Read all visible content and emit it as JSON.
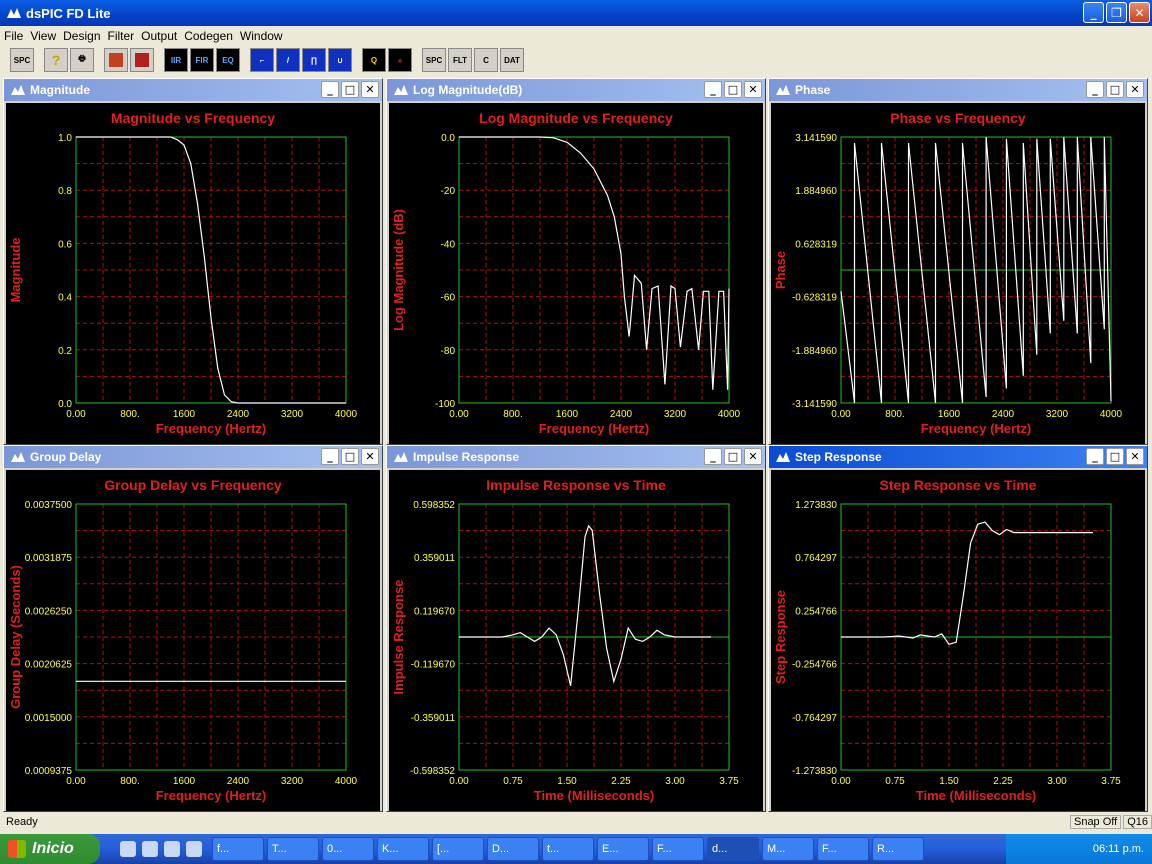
{
  "window": {
    "title": "dsPIC FD Lite"
  },
  "menu": [
    "File",
    "View",
    "Design",
    "Filter",
    "Output",
    "Codegen",
    "Window"
  ],
  "toolbar": [
    "SPC",
    "?",
    "print",
    "",
    "",
    "",
    "IIR",
    "FIR",
    "EQ",
    "",
    "",
    "",
    "",
    "Q",
    "",
    "SPC",
    "FLT",
    "C",
    "DAT"
  ],
  "panels": [
    {
      "id": "magnitude",
      "window_title": "Magnitude",
      "active": false
    },
    {
      "id": "logmag",
      "window_title": "Log Magnitude(dB)",
      "active": false
    },
    {
      "id": "phase",
      "window_title": "Phase",
      "active": false
    },
    {
      "id": "groupdelay",
      "window_title": "Group Delay",
      "active": false
    },
    {
      "id": "impulse",
      "window_title": "Impulse Response",
      "active": false
    },
    {
      "id": "step",
      "window_title": "Step Response",
      "active": true
    }
  ],
  "chart_data": [
    {
      "type": "line",
      "title": "Magnitude vs Frequency",
      "xlabel": "Frequency (Hertz)",
      "ylabel": "Magnitude",
      "xlim": [
        0,
        4000
      ],
      "ylim": [
        0,
        1
      ],
      "xticks": [
        "0.00",
        "800.",
        "1600",
        "2400",
        "3200",
        "4000"
      ],
      "yticks": [
        "0.0",
        "0.2",
        "0.4",
        "0.6",
        "0.8",
        "1.0"
      ],
      "grid": true,
      "x": [
        0,
        400,
        800,
        1200,
        1400,
        1500,
        1600,
        1700,
        1800,
        1900,
        2000,
        2100,
        2200,
        2300,
        2400,
        2800,
        3200,
        3600,
        4000
      ],
      "y": [
        1,
        1,
        1,
        1,
        1,
        0.99,
        0.97,
        0.9,
        0.75,
        0.55,
        0.32,
        0.13,
        0.03,
        0.005,
        0,
        0,
        0,
        0,
        0
      ]
    },
    {
      "type": "line",
      "title": "Log Magnitude vs Frequency",
      "xlabel": "Frequency (Hertz)",
      "ylabel": "Log Magnitude (dB)",
      "xlim": [
        0,
        4000
      ],
      "ylim": [
        -100,
        0
      ],
      "xticks": [
        "0.00",
        "800.",
        "1600",
        "2400",
        "3200",
        "4000"
      ],
      "yticks": [
        "-100",
        "-80",
        "-60",
        "-40",
        "-20",
        "0.0"
      ],
      "grid": true,
      "x": [
        0,
        800,
        1200,
        1400,
        1600,
        1800,
        2000,
        2200,
        2300,
        2400,
        2450,
        2520,
        2540,
        2600,
        2700,
        2780,
        2860,
        2950,
        3050,
        3140,
        3200,
        3280,
        3380,
        3450,
        3550,
        3620,
        3700,
        3760,
        3850,
        3920,
        3980,
        4000
      ],
      "y": [
        0,
        0,
        0,
        -0.3,
        -2,
        -6,
        -12,
        -22,
        -30,
        -44,
        -60,
        -75,
        -70,
        -52,
        -55,
        -80,
        -57,
        -56,
        -93,
        -56,
        -57,
        -79,
        -58,
        -57,
        -80,
        -58,
        -58,
        -95,
        -58,
        -58,
        -95,
        -57
      ]
    },
    {
      "type": "line",
      "title": "Phase vs Frequency",
      "xlabel": "Frequency (Hertz)",
      "ylabel": "Phase",
      "xlim": [
        0,
        4000
      ],
      "ylim": [
        -3.14159,
        3.14159
      ],
      "xticks": [
        "0.00",
        "800.",
        "1600",
        "2400",
        "3200",
        "4000"
      ],
      "yticks": [
        "-3.141590",
        "-1.884960",
        "-0.628319",
        "0.628319",
        "1.884960",
        "3.141590"
      ],
      "grid": true,
      "x": [
        0,
        200,
        200,
        600,
        600,
        1000,
        1000,
        1400,
        1400,
        1800,
        1800,
        2150,
        2150,
        2450,
        2450,
        2700,
        2700,
        2900,
        2900,
        3100,
        3100,
        3300,
        3300,
        3500,
        3500,
        3700,
        3700,
        3900,
        3900,
        4000
      ],
      "y": [
        -0.5,
        -3.14,
        3.0,
        -3.14,
        3.0,
        -3.14,
        3.0,
        -3.14,
        3.0,
        -3.14,
        3.0,
        -3.0,
        3.14,
        -2.8,
        3.1,
        -2.5,
        3.0,
        -2.0,
        3.1,
        -1.5,
        3.1,
        -1.2,
        3.14,
        -1.5,
        3.14,
        -2.2,
        3.14,
        -1.4,
        3.14,
        -3.1
      ]
    },
    {
      "type": "line",
      "title": "Group Delay vs Frequency",
      "xlabel": "Frequency (Hertz)",
      "ylabel": "Group Delay (Seconds)",
      "xlim": [
        0,
        4000
      ],
      "ylim": [
        0.0009375,
        0.00375
      ],
      "xticks": [
        "0.00",
        "800.",
        "1600",
        "2400",
        "3200",
        "4000"
      ],
      "yticks": [
        "0.0009375",
        "0.0015000",
        "0.0020625",
        "0.0026250",
        "0.0031875",
        "0.0037500"
      ],
      "grid": true,
      "x": [
        0,
        4000
      ],
      "y": [
        0.001875,
        0.001875
      ]
    },
    {
      "type": "line",
      "title": "Impulse Response vs Time",
      "xlabel": "Time (Milliseconds)",
      "ylabel": "Impulse Response",
      "xlim": [
        0,
        3.75
      ],
      "ylim": [
        -0.598352,
        0.598352
      ],
      "xticks": [
        "0.00",
        "0.75",
        "1.50",
        "2.25",
        "3.00",
        "3.75"
      ],
      "yticks": [
        "-0.598352",
        "-0.359011",
        "-0.119670",
        "0.119670",
        "0.359011",
        "0.598352"
      ],
      "grid": true,
      "x": [
        0,
        0.6,
        0.75,
        0.85,
        0.95,
        1.05,
        1.15,
        1.25,
        1.35,
        1.45,
        1.55,
        1.65,
        1.75,
        1.8,
        1.85,
        1.95,
        2.05,
        2.15,
        2.25,
        2.35,
        2.45,
        2.55,
        2.65,
        2.75,
        2.85,
        3.0,
        3.2,
        3.5
      ],
      "y": [
        0,
        0,
        0.01,
        0.02,
        0,
        -0.02,
        0,
        0.04,
        0.01,
        -0.08,
        -0.22,
        0.1,
        0.45,
        0.5,
        0.48,
        0.2,
        -0.05,
        -0.2,
        -0.1,
        0.04,
        -0.01,
        -0.02,
        0.0,
        0.03,
        0.01,
        0.0,
        0.0,
        0.0
      ]
    },
    {
      "type": "line",
      "title": "Step Response vs Time",
      "xlabel": "Time (Milliseconds)",
      "ylabel": "Step Response",
      "xlim": [
        0,
        3.75
      ],
      "ylim": [
        -1.27383,
        1.27383
      ],
      "xticks": [
        "0.00",
        "0.75",
        "1.50",
        "2.25",
        "3.00",
        "3.75"
      ],
      "yticks": [
        "-1.273830",
        "-0.764297",
        "-0.254766",
        "0.254766",
        "0.764297",
        "1.273830"
      ],
      "grid": true,
      "x": [
        0,
        0.6,
        0.8,
        1.0,
        1.1,
        1.3,
        1.4,
        1.5,
        1.6,
        1.7,
        1.8,
        1.9,
        2.0,
        2.1,
        2.2,
        2.3,
        2.4,
        2.6,
        2.8,
        3.0,
        3.5
      ],
      "y": [
        0,
        0,
        0.01,
        -0.01,
        0.02,
        0.0,
        0.03,
        -0.07,
        -0.05,
        0.4,
        0.9,
        1.08,
        1.1,
        1.02,
        0.98,
        1.03,
        1.0,
        1.0,
        1.0,
        1.0,
        1.0
      ]
    }
  ],
  "status": {
    "text": "Ready",
    "snap": "Snap Off",
    "code": "Q16"
  },
  "taskbar": {
    "start": "Inicio",
    "tasks": [
      "f...",
      "T...",
      "0...",
      "K...",
      "[...",
      "D...",
      "t...",
      "E...",
      "F...",
      "d...",
      "M...",
      "F...",
      "R..."
    ],
    "clock": "06:11 p.m."
  }
}
